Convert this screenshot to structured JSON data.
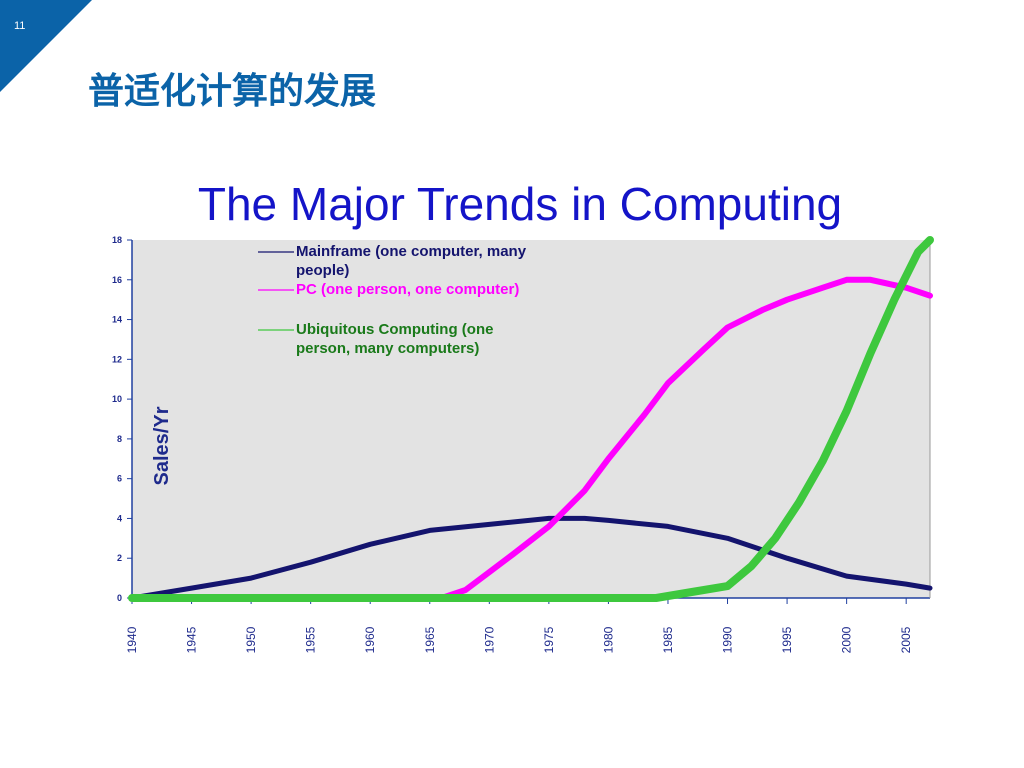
{
  "slide": {
    "number": "11",
    "title": "普适化计算的发展",
    "accent_color": "#0b63a8"
  },
  "chart_data": {
    "type": "line",
    "title": "The Major Trends in Computing",
    "title_color": "#1414c8",
    "ylabel": "Sales/Yr",
    "xlabel": "",
    "xlim": [
      1940,
      2007
    ],
    "ylim": [
      0,
      18
    ],
    "yticks": [
      0,
      2,
      4,
      6,
      8,
      10,
      12,
      14,
      16,
      18
    ],
    "xticks": [
      1940,
      1945,
      1950,
      1955,
      1960,
      1965,
      1970,
      1975,
      1980,
      1985,
      1990,
      1995,
      2000,
      2005
    ],
    "grid": false,
    "plot_background": "#e3e3e3",
    "legend_position": "top-left",
    "series": [
      {
        "name": "Mainframe (one computer, many people)",
        "color": "#14146e",
        "x": [
          1940,
          1945,
          1950,
          1955,
          1960,
          1965,
          1970,
          1975,
          1978,
          1980,
          1985,
          1990,
          1995,
          2000,
          2005,
          2007
        ],
        "y": [
          0.0,
          0.5,
          1.0,
          1.8,
          2.7,
          3.4,
          3.7,
          4.0,
          4.0,
          3.9,
          3.6,
          3.0,
          2.0,
          1.1,
          0.7,
          0.5
        ]
      },
      {
        "name": "PC (one person, one computer)",
        "color": "#ff00ff",
        "x": [
          1940,
          1966,
          1968,
          1970,
          1972,
          1975,
          1978,
          1980,
          1983,
          1985,
          1988,
          1990,
          1993,
          1995,
          1998,
          2000,
          2002,
          2005,
          2007
        ],
        "y": [
          0,
          0,
          0.4,
          1.3,
          2.2,
          3.6,
          5.4,
          7.0,
          9.2,
          10.8,
          12.5,
          13.6,
          14.5,
          15.0,
          15.6,
          16.0,
          16.0,
          15.6,
          15.2
        ]
      },
      {
        "name": "Ubiquitous Computing (one person, many computers)",
        "color": "#3ec83e",
        "x": [
          1940,
          1984,
          1985,
          1987,
          1990,
          1992,
          1994,
          1996,
          1998,
          2000,
          2002,
          2004,
          2006,
          2007
        ],
        "y": [
          0,
          0,
          0.1,
          0.3,
          0.6,
          1.6,
          3.0,
          4.8,
          6.9,
          9.4,
          12.3,
          15.0,
          17.4,
          18.0
        ]
      }
    ]
  }
}
